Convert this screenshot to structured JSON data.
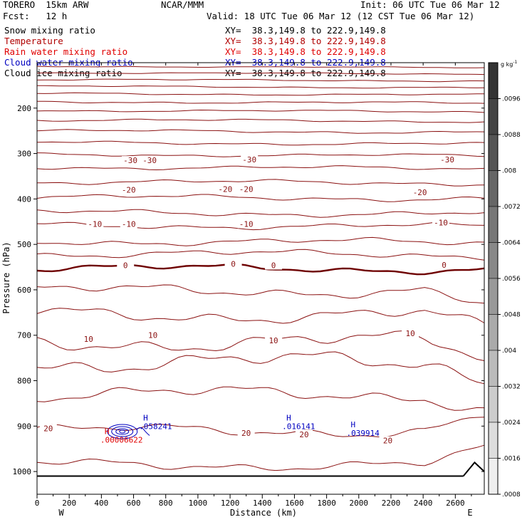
{
  "header": {
    "model": "TORERO  15km ARW",
    "org": "NCAR/MMM",
    "init": "Init: 06 UTC Tue 06 Mar 12",
    "fcst": "Fcst:   12 h",
    "valid": "Valid: 18 UTC Tue 06 Mar 12 (12 CST Tue 06 Mar 12)"
  },
  "fields": [
    {
      "label": "Snow mixing ratio",
      "xy": "XY=  38.3,149.8 to 222.9,149.8",
      "color": "#000000"
    },
    {
      "label": "Temperature",
      "xy": "XY=  38.3,149.8 to 222.9,149.8",
      "color": "#b00000"
    },
    {
      "label": "Rain water mixing ratio",
      "xy": "XY=  38.3,149.8 to 222.9,149.8",
      "color": "#e00000"
    },
    {
      "label": "Cloud water mixing ratio",
      "xy": "XY=  38.3,149.8 to 222.9,149.8",
      "color": "#0000c0"
    },
    {
      "label": "Cloud ice mixing ratio",
      "xy": "XY=  38.3,149.8 to 222.9,149.8",
      "color": "#000000"
    }
  ],
  "chart_data": {
    "type": "contour",
    "xlabel": "Distance (km)",
    "ylabel": "Pressure (hPa)",
    "xlim": [
      0,
      2780
    ],
    "ylim": [
      1050,
      100
    ],
    "x_ticks": [
      0,
      200,
      400,
      600,
      800,
      1000,
      1200,
      1400,
      1600,
      1800,
      2000,
      2200,
      2400,
      2600
    ],
    "y_ticks": [
      200,
      300,
      400,
      500,
      600,
      700,
      800,
      900,
      1000
    ],
    "west_label": "W",
    "east_label": "E",
    "colorbar": {
      "unit": "g kg",
      "unit_exp": "-1",
      "ticks": [
        ".0096",
        ".0088",
        ".008",
        ".0072",
        ".0064",
        ".0056",
        ".0048",
        ".004",
        ".0032",
        ".0024",
        ".0016",
        ".0008"
      ]
    },
    "temperature_contours": [
      {
        "label": "-30",
        "label_positions": [
          [
            580,
            315
          ],
          [
            700,
            315
          ],
          [
            1320,
            313
          ],
          [
            2550,
            313
          ]
        ]
      },
      {
        "label": "-20",
        "label_positions": [
          [
            570,
            380
          ],
          [
            1170,
            378
          ],
          [
            1300,
            378
          ],
          [
            2380,
            385
          ]
        ]
      },
      {
        "label": "-10",
        "label_positions": [
          [
            360,
            455
          ],
          [
            570,
            455
          ],
          [
            1300,
            455
          ],
          [
            2510,
            452
          ]
        ]
      },
      {
        "label": "0",
        "label_positions": [
          [
            550,
            546
          ],
          [
            1220,
            543
          ],
          [
            1470,
            546
          ],
          [
            2530,
            545
          ]
        ]
      },
      {
        "label": "10",
        "label_positions": [
          [
            720,
            700
          ],
          [
            320,
            708
          ],
          [
            1470,
            711
          ],
          [
            2320,
            696
          ]
        ]
      },
      {
        "label": "20",
        "label_positions": [
          [
            70,
            905
          ],
          [
            1300,
            915
          ],
          [
            1660,
            918
          ],
          [
            2180,
            932
          ]
        ]
      }
    ],
    "maxima": [
      {
        "mark": "H",
        "value": ".00006622",
        "x": 420,
        "p": 930,
        "color": "#e00000"
      },
      {
        "mark": "H",
        "value": ".058241",
        "x": 660,
        "p": 900,
        "color": "#0000c0"
      },
      {
        "mark": "H",
        "value": ".016141",
        "x": 1550,
        "p": 900,
        "color": "#0000c0"
      },
      {
        "mark": "H",
        "value": ".039914",
        "x": 1950,
        "p": 915,
        "color": "#0000c0"
      }
    ],
    "surface_p": 1010
  }
}
